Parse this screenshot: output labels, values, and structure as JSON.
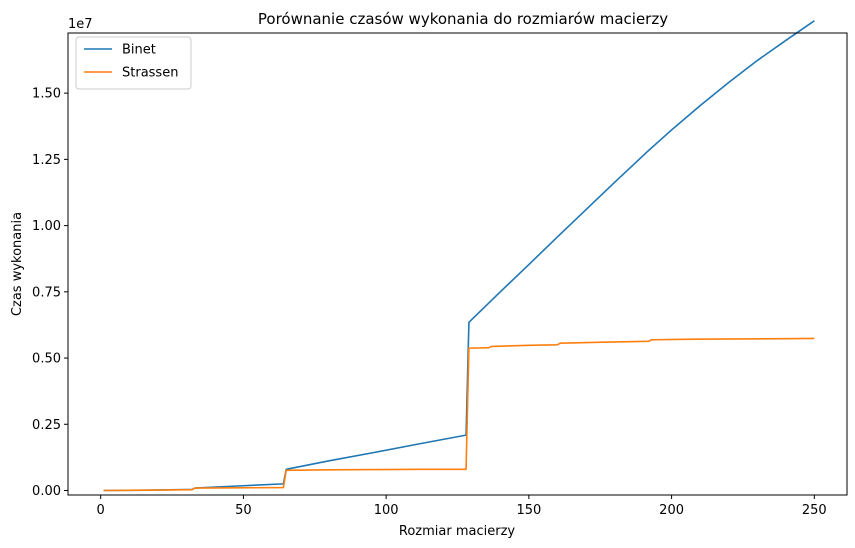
{
  "chart_data": {
    "type": "line",
    "title": "Porównanie czasów wykonania do rozmiarów macierzy",
    "xlabel": "Rozmiar macierzy",
    "ylabel": "Czas wykonania",
    "y_offset_text": "1e7",
    "xlim": [
      -11.45,
      261.45
    ],
    "ylim": [
      -170000,
      17270000
    ],
    "x_ticks": [
      0,
      50,
      100,
      150,
      200,
      250
    ],
    "x_tick_labels": [
      "0",
      "50",
      "100",
      "150",
      "200",
      "250"
    ],
    "y_ticks": [
      0,
      2500000,
      5000000,
      7500000,
      10000000,
      12500000,
      15000000
    ],
    "y_tick_labels": [
      "0.00",
      "0.25",
      "0.50",
      "0.75",
      "1.00",
      "1.25",
      "1.50"
    ],
    "grid": false,
    "legend_position": "top-left",
    "series": [
      {
        "name": "Binet",
        "color": "#1f77b4",
        "x": [
          1,
          16,
          32,
          33,
          48,
          64,
          65,
          80,
          96,
          112,
          128,
          129,
          140,
          150,
          160,
          170,
          180,
          192,
          200,
          210,
          220,
          230,
          240,
          250
        ],
        "y": [
          0,
          10000,
          40000,
          90000,
          170000,
          250000,
          800000,
          1120000,
          1440000,
          1770000,
          2090000,
          6350000,
          7500000,
          8530000,
          9570000,
          10600000,
          11630000,
          12840000,
          13610000,
          14530000,
          15400000,
          16230000,
          16990000,
          17730000
        ]
      },
      {
        "name": "Strassen",
        "color": "#ff7f0e",
        "x": [
          1,
          16,
          32,
          33,
          48,
          64,
          65,
          80,
          96,
          112,
          128,
          129,
          136,
          137,
          150,
          160,
          161,
          176,
          192,
          193,
          208,
          224,
          240,
          250
        ],
        "y": [
          0,
          10000,
          30000,
          90000,
          100000,
          110000,
          760000,
          780000,
          790000,
          800000,
          800000,
          5370000,
          5390000,
          5440000,
          5480000,
          5500000,
          5560000,
          5600000,
          5630000,
          5690000,
          5710000,
          5720000,
          5730000,
          5740000
        ]
      }
    ]
  }
}
